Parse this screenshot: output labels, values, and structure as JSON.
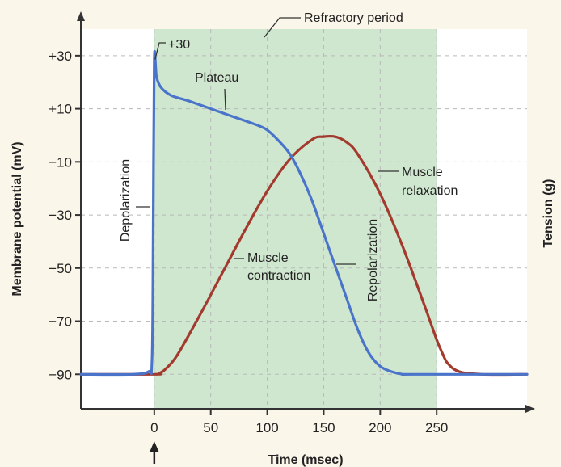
{
  "chart_data": {
    "type": "line",
    "xlabel": "Time (msec)",
    "ylabel": "Membrane potential (mV)",
    "y2label": "Tension (g)",
    "xticks": [
      0,
      50,
      100,
      150,
      200,
      250
    ],
    "yticks": [
      30,
      10,
      -10,
      -30,
      -50,
      -70,
      -90
    ],
    "ytick_labels": [
      "+30",
      "+10",
      "−10",
      "−30",
      "−50",
      "−70",
      "−90"
    ],
    "xlim": [
      -65,
      330
    ],
    "ylim": [
      -103,
      40
    ],
    "grid": true,
    "shaded_region": {
      "label": "Refractory period",
      "x": [
        0,
        250
      ],
      "color": "#cfe6cf"
    },
    "series": [
      {
        "color": "#4a74c9",
        "x": [
          -65,
          -20,
          -5,
          -2,
          -1,
          0,
          2,
          6,
          15,
          30,
          50,
          70,
          90,
          100,
          110,
          120,
          130,
          140,
          150,
          160,
          170,
          180,
          190,
          200,
          210,
          220,
          230,
          330
        ],
        "y": [
          -90,
          -90,
          -89,
          -85,
          -40,
          28,
          22,
          18,
          15,
          13,
          10,
          7,
          4,
          2,
          -2,
          -7,
          -15,
          -25,
          -37,
          -49,
          -61,
          -73,
          -82,
          -87,
          -89,
          -90,
          -90,
          -90
        ]
      },
      {
        "color": "#a33a2e",
        "x": [
          -65,
          0,
          5,
          10,
          20,
          40,
          60,
          80,
          100,
          120,
          140,
          150,
          160,
          170,
          180,
          200,
          220,
          240,
          250,
          255,
          260,
          270,
          290,
          330
        ],
        "y": [
          -90,
          -90,
          -89.5,
          -88,
          -83,
          -68,
          -52,
          -36,
          -21,
          -9,
          -1.5,
          -0.5,
          -0.5,
          -2.5,
          -7,
          -22,
          -42,
          -65,
          -77,
          -82,
          -86,
          -89,
          -90,
          -90
        ]
      }
    ],
    "annotations": {
      "peak": "+30",
      "plateau": "Plateau",
      "depolarization": "Depolarization",
      "repolarization": "Repolarization",
      "muscle_contraction": [
        "Muscle",
        "contraction"
      ],
      "muscle_relaxation": [
        "Muscle",
        "relaxation"
      ]
    }
  }
}
